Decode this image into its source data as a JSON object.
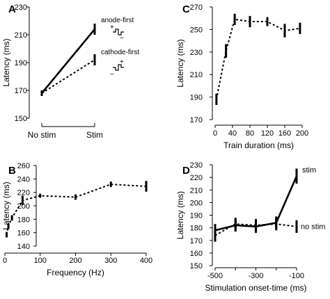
{
  "chart_data": [
    {
      "panel": "A",
      "type": "line",
      "ylabel": "Latency (ms)",
      "xlabel": "",
      "ylim": [
        150,
        230
      ],
      "yticks": [
        150,
        170,
        190,
        210,
        230
      ],
      "categories": [
        "No stim",
        "Stim"
      ],
      "series": [
        {
          "name": "anode-first",
          "style": "solid",
          "values": [
            168,
            214
          ],
          "err": [
            2,
            4
          ]
        },
        {
          "name": "cathode-first",
          "style": "dashed",
          "values": [
            168,
            192
          ],
          "err": [
            2,
            4
          ]
        }
      ],
      "annotations": [
        "+",
        "−",
        "+",
        "−"
      ]
    },
    {
      "panel": "B",
      "type": "line",
      "ylabel": "Latency (ms)",
      "xlabel": "Frequency (Hz)",
      "ylim": [
        140,
        260
      ],
      "yticks": [
        140,
        160,
        180,
        200,
        220,
        240,
        260
      ],
      "xlim": [
        0,
        400
      ],
      "xticks": [
        0,
        100,
        200,
        300,
        400
      ],
      "series": [
        {
          "name": "",
          "style": "dashed",
          "x": [
            5,
            10,
            20,
            50,
            100,
            200,
            300,
            400
          ],
          "values": [
            157,
            170,
            182,
            208,
            215,
            213,
            232,
            229
          ],
          "err": [
            4,
            4,
            4,
            7,
            3,
            4,
            4,
            8
          ]
        }
      ]
    },
    {
      "panel": "C",
      "type": "line",
      "ylabel": "Latency (ms)",
      "xlabel": "Train duration (ms)",
      "ylim": [
        170,
        270
      ],
      "yticks": [
        170,
        190,
        210,
        230,
        250,
        270
      ],
      "xlim": [
        0,
        200
      ],
      "xticks": [
        0,
        40,
        80,
        120,
        160,
        200
      ],
      "series": [
        {
          "name": "",
          "style": "dashed",
          "x": [
            3,
            25,
            45,
            80,
            120,
            160,
            195
          ],
          "values": [
            188,
            231,
            259,
            257,
            257,
            249,
            251
          ],
          "err": [
            5,
            6,
            5,
            5,
            4,
            6,
            5
          ]
        }
      ]
    },
    {
      "panel": "D",
      "type": "line",
      "ylabel": "Latency (ms)",
      "xlabel": "Stimulation onset-time (ms)",
      "ylim": [
        150,
        230
      ],
      "yticks": [
        150,
        160,
        170,
        180,
        190,
        200,
        210,
        220,
        230
      ],
      "xlim": [
        -500,
        -100
      ],
      "xticks": [
        -500,
        -400,
        -300,
        -200,
        -100
      ],
      "xticklabels": [
        "-500",
        "-300",
        "-100"
      ],
      "series": [
        {
          "name": "stim",
          "style": "solid",
          "x": [
            -500,
            -400,
            -300,
            -200,
            -100
          ],
          "values": [
            178,
            182,
            181,
            184,
            221
          ],
          "err": [
            5,
            5,
            5,
            5,
            6
          ]
        },
        {
          "name": "no stim",
          "style": "dashed",
          "x": [
            -500,
            -400,
            -300,
            -200,
            -100
          ],
          "values": [
            174,
            183,
            182,
            183,
            181
          ],
          "err": [
            5,
            5,
            5,
            5,
            5
          ]
        }
      ]
    }
  ]
}
